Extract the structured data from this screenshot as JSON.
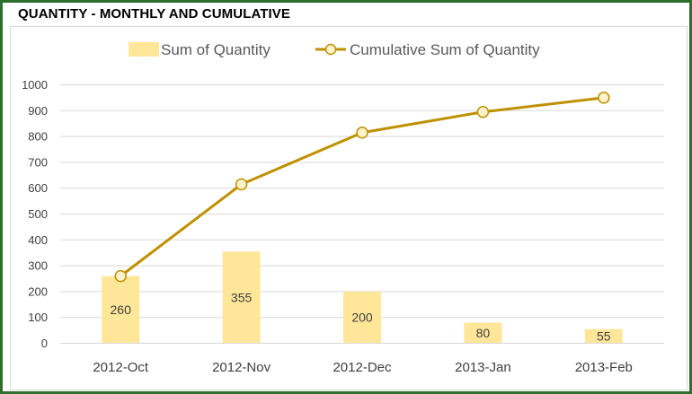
{
  "title": "QUANTITY - MONTHLY AND CUMULATIVE",
  "colors": {
    "frame": "#2e6f2e",
    "bar": "#ffe699",
    "line": "#bf9000",
    "marker_fill": "#fff2cc",
    "grid": "#d9d9d9"
  },
  "chart_data": {
    "type": "bar",
    "categories": [
      "2012-Oct",
      "2012-Nov",
      "2012-Dec",
      "2013-Jan",
      "2013-Feb"
    ],
    "series": [
      {
        "name": "Sum of Quantity",
        "type": "bar",
        "values": [
          260,
          355,
          200,
          80,
          55
        ]
      },
      {
        "name": "Cumulative Sum of Quantity",
        "type": "line",
        "values": [
          260,
          615,
          815,
          895,
          950
        ]
      }
    ],
    "ylim": [
      0,
      1000
    ],
    "yticks": [
      0,
      100,
      200,
      300,
      400,
      500,
      600,
      700,
      800,
      900,
      1000
    ],
    "grid": true,
    "legend": "top",
    "data_labels": [
      "260",
      "355",
      "200",
      "80",
      "55"
    ]
  }
}
